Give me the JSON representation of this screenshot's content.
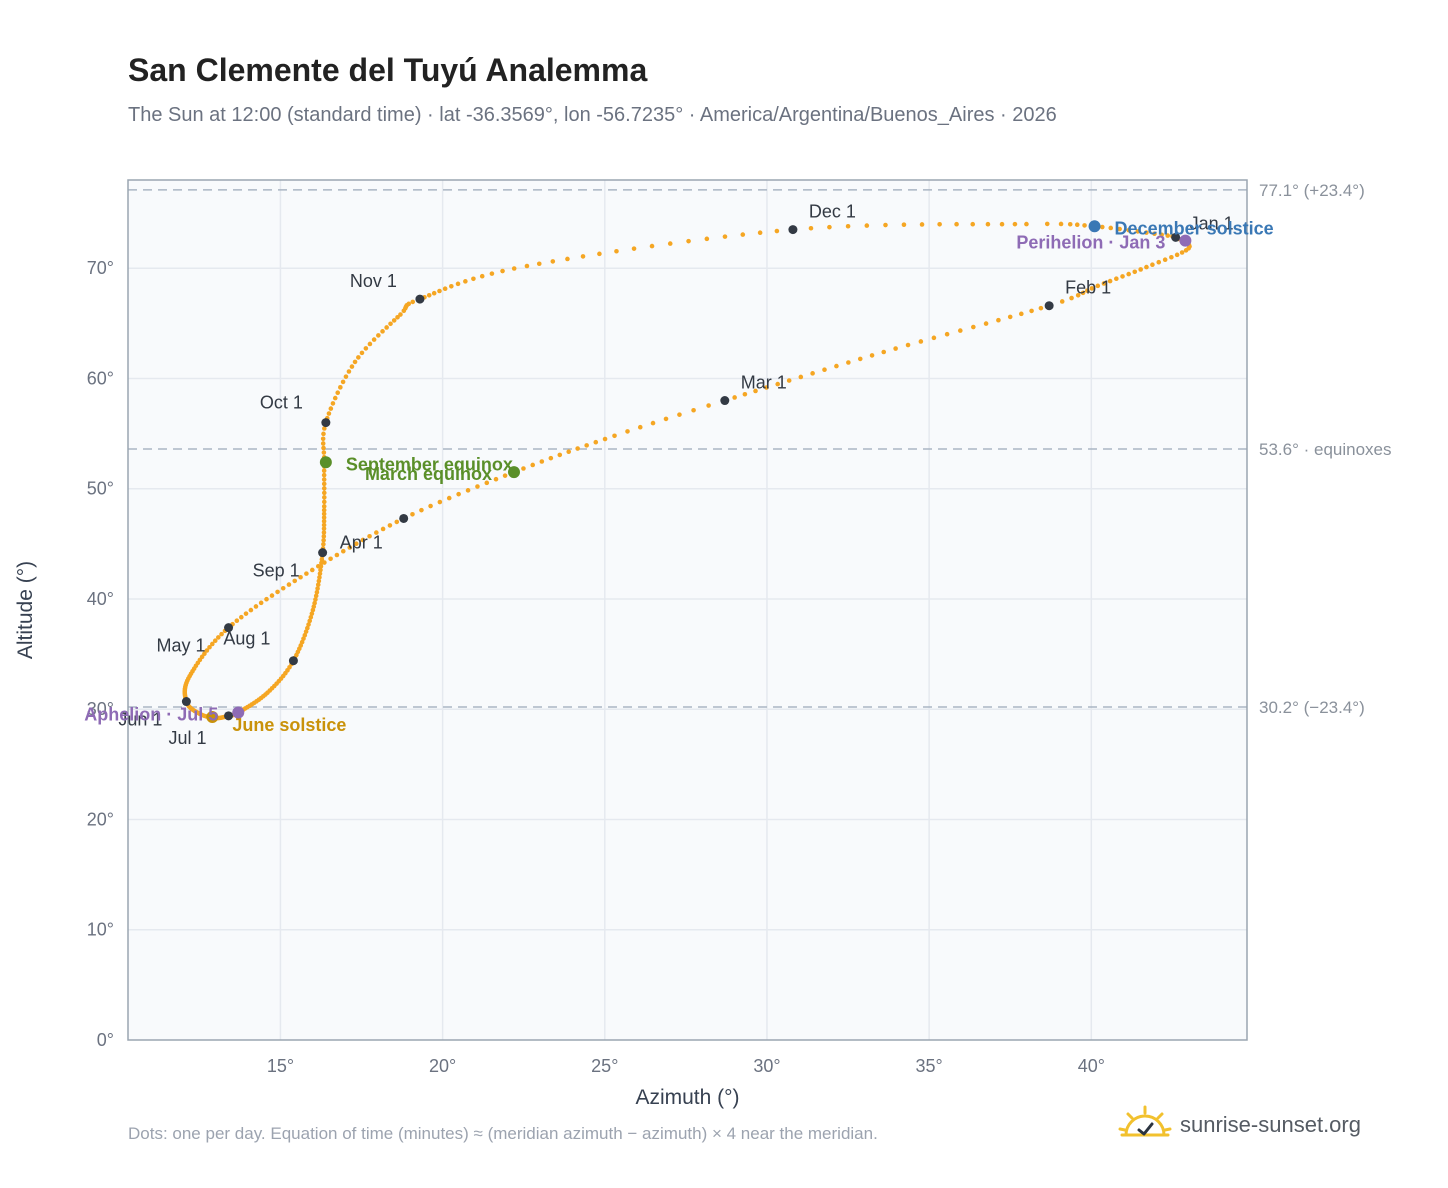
{
  "header": {
    "title": "San Clemente del Tuyú Analemma",
    "subtitle": "The Sun at 12:00 (standard time) · lat -36.3569°, lon -56.7235° · America/Argentina/Buenos_Aires · 2026"
  },
  "footer": {
    "note": "Dots: one per day. Equation of time (minutes) ≈ (meridian azimuth − azimuth) × 4 near the meridian.",
    "brand": "sunrise-sunset.org",
    "brand_icon": "sun-check-icon"
  },
  "colors": {
    "path": "#f5a623",
    "month_marker": "#333a44",
    "equinox": "#5a8f29",
    "june_solstice": "#c9920a",
    "december_solstice": "#3a78b5",
    "apsis": "#8e6bb5",
    "plot_bg": "#f8fafc",
    "grid": "#e5e9ef",
    "reference_line": "#aab6c4"
  },
  "chart_data": {
    "type": "scatter",
    "xlabel": "Azimuth (°)",
    "ylabel": "Altitude (°)",
    "xlim": [
      10.3,
      44.8
    ],
    "ylim": [
      0,
      78
    ],
    "xticks": [
      15,
      20,
      25,
      30,
      35,
      40
    ],
    "xtick_labels": [
      "15°",
      "20°",
      "25°",
      "30°",
      "35°",
      "40°"
    ],
    "yticks": [
      0,
      10,
      20,
      30,
      40,
      50,
      60,
      70
    ],
    "ytick_labels": [
      "0°",
      "10°",
      "20°",
      "30°",
      "40°",
      "50°",
      "60°",
      "70°"
    ],
    "grid": true,
    "reference_lines": [
      {
        "y": 77.1,
        "label": "77.1° (+23.4°)"
      },
      {
        "y": 53.6,
        "label": "53.6° · equinoxes"
      },
      {
        "y": 30.2,
        "label": "30.2° (−23.4°)"
      }
    ],
    "path_anchors": [
      {
        "d": 0,
        "az": 42.6,
        "alt": 72.8
      },
      {
        "d": 8,
        "az": 43.0,
        "alt": 71.8
      },
      {
        "d": 16,
        "az": 41.7,
        "alt": 70.1
      },
      {
        "d": 24,
        "az": 40.2,
        "alt": 68.4
      },
      {
        "d": 31,
        "az": 38.7,
        "alt": 66.6
      },
      {
        "d": 45,
        "az": 33.6,
        "alt": 62.4
      },
      {
        "d": 59,
        "az": 28.7,
        "alt": 58.0
      },
      {
        "d": 67,
        "az": 25.3,
        "alt": 54.8
      },
      {
        "d": 78,
        "az": 22.2,
        "alt": 51.5
      },
      {
        "d": 90,
        "az": 18.8,
        "alt": 47.3
      },
      {
        "d": 105,
        "az": 15.8,
        "alt": 42.3
      },
      {
        "d": 120,
        "az": 13.4,
        "alt": 37.4
      },
      {
        "d": 136,
        "az": 12.2,
        "alt": 33.0
      },
      {
        "d": 151,
        "az": 12.1,
        "alt": 30.7
      },
      {
        "d": 161,
        "az": 12.5,
        "alt": 29.6
      },
      {
        "d": 171,
        "az": 13.0,
        "alt": 29.2
      },
      {
        "d": 181,
        "az": 13.4,
        "alt": 29.4
      },
      {
        "d": 186,
        "az": 13.7,
        "alt": 29.7
      },
      {
        "d": 200,
        "az": 14.6,
        "alt": 31.5
      },
      {
        "d": 212,
        "az": 15.4,
        "alt": 34.4
      },
      {
        "d": 227,
        "az": 16.0,
        "alt": 39.0
      },
      {
        "d": 243,
        "az": 16.3,
        "alt": 44.2
      },
      {
        "d": 255,
        "az": 16.35,
        "alt": 48.4
      },
      {
        "d": 265,
        "az": 16.35,
        "alt": 52.4
      },
      {
        "d": 273,
        "az": 16.4,
        "alt": 56.0
      },
      {
        "d": 285,
        "az": 17.3,
        "alt": 61.5
      },
      {
        "d": 297,
        "az": 18.7,
        "alt": 65.8
      },
      {
        "d": 304,
        "az": 19.3,
        "alt": 67.2
      },
      {
        "d": 318,
        "az": 22.6,
        "alt": 70.2
      },
      {
        "d": 334,
        "az": 30.8,
        "alt": 73.5
      },
      {
        "d": 348,
        "az": 38.0,
        "alt": 74.0
      },
      {
        "d": 354,
        "az": 40.1,
        "alt": 73.8
      },
      {
        "d": 364,
        "az": 42.5,
        "alt": 72.9
      }
    ],
    "month_markers": [
      {
        "label": "Jan 1",
        "az": 42.6,
        "alt": 72.8,
        "dx": 14,
        "dy": -8
      },
      {
        "label": "Feb 1",
        "az": 38.7,
        "alt": 66.6,
        "dx": 16,
        "dy": -12
      },
      {
        "label": "Mar 1",
        "az": 28.7,
        "alt": 58.0,
        "dx": 16,
        "dy": -12
      },
      {
        "label": "Apr 1",
        "az": 18.8,
        "alt": 47.3,
        "dx": -64,
        "dy": 30
      },
      {
        "label": "May 1",
        "az": 13.4,
        "alt": 37.4,
        "dx": -72,
        "dy": 24
      },
      {
        "label": "Jun 1",
        "az": 12.1,
        "alt": 30.7,
        "dx": -68,
        "dy": 24
      },
      {
        "label": "Jul 1",
        "az": 13.4,
        "alt": 29.4,
        "dx": -60,
        "dy": 28
      },
      {
        "label": "Aug 1",
        "az": 15.4,
        "alt": 34.4,
        "dx": -70,
        "dy": -16
      },
      {
        "label": "Sep 1",
        "az": 16.3,
        "alt": 44.2,
        "dx": -70,
        "dy": 24
      },
      {
        "label": "Oct 1",
        "az": 16.4,
        "alt": 56.0,
        "dx": -66,
        "dy": -14
      },
      {
        "label": "Nov 1",
        "az": 19.3,
        "alt": 67.2,
        "dx": -70,
        "dy": -12
      },
      {
        "label": "Dec 1",
        "az": 30.8,
        "alt": 73.5,
        "dx": 16,
        "dy": -12
      }
    ],
    "events": [
      {
        "label": "March equinox",
        "az": 22.2,
        "alt": 51.5,
        "color_key": "equinox",
        "anchor": "end",
        "dx": -22,
        "dy": 8
      },
      {
        "label": "September equinox",
        "az": 16.4,
        "alt": 52.4,
        "color_key": "equinox",
        "anchor": "start",
        "dx": 20,
        "dy": 8
      },
      {
        "label": "June solstice",
        "az": 12.9,
        "alt": 29.3,
        "color_key": "june_solstice",
        "anchor": "start",
        "dx": 20,
        "dy": 14
      },
      {
        "label": "December solstice",
        "az": 40.1,
        "alt": 73.8,
        "color_key": "december_solstice",
        "anchor": "start",
        "dx": 20,
        "dy": 8
      },
      {
        "label": "Perihelion · Jan 3",
        "az": 42.9,
        "alt": 72.5,
        "color_key": "apsis",
        "anchor": "end",
        "dx": -20,
        "dy": 8
      },
      {
        "label": "Aphelion · Jul 5",
        "az": 13.7,
        "alt": 29.7,
        "color_key": "apsis",
        "anchor": "end",
        "dx": -20,
        "dy": 8
      }
    ]
  }
}
